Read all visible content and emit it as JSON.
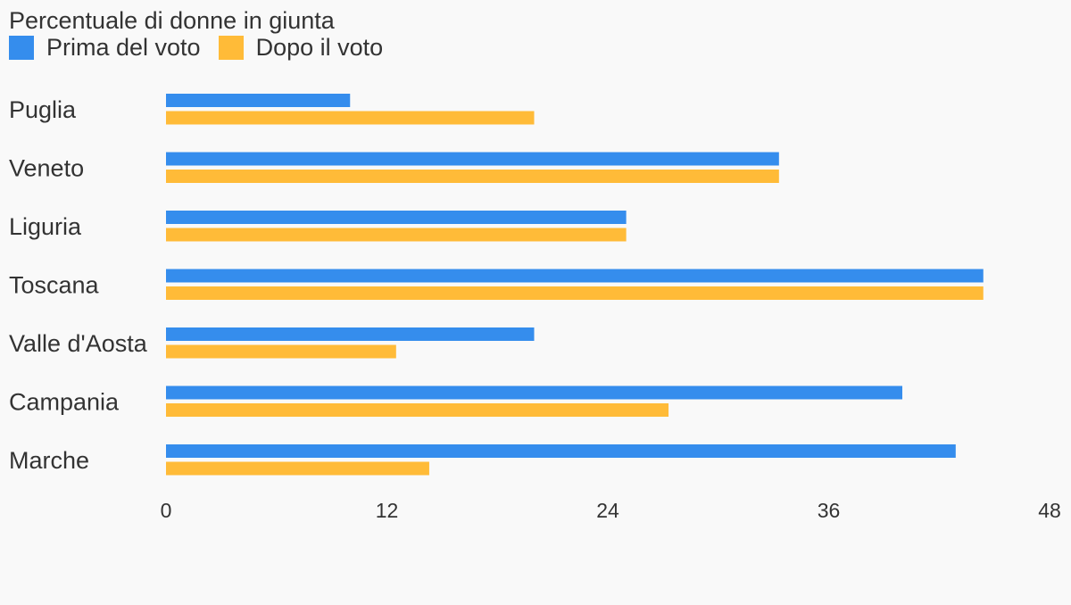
{
  "chart_data": {
    "type": "bar",
    "orientation": "horizontal",
    "title": "Percentuale di donne in giunta",
    "categories": [
      "Puglia",
      "Veneto",
      "Liguria",
      "Toscana",
      "Valle d'Aosta",
      "Campania",
      "Marche"
    ],
    "series": [
      {
        "name": "Prima del voto",
        "color": "#358ded",
        "values": [
          10,
          33.3,
          25,
          44.4,
          20,
          40,
          42.9
        ]
      },
      {
        "name": "Dopo il voto",
        "color": "#ffbb38",
        "values": [
          20,
          33.3,
          25,
          44.4,
          12.5,
          27.3,
          14.3
        ]
      }
    ],
    "xlim": [
      0,
      48
    ],
    "xticks": [
      "0",
      "12",
      "24",
      "36",
      "48"
    ],
    "grid": false,
    "legend": "top-left"
  }
}
